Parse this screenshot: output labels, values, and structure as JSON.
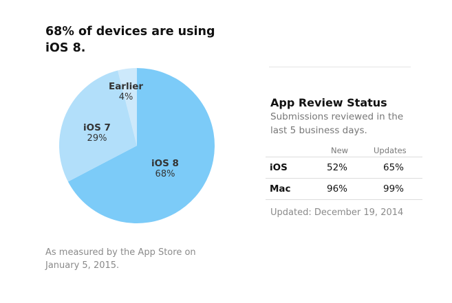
{
  "title": "68% of devices are using iOS 8.",
  "footnote": "As measured by the App Store on January 5, 2015.",
  "chart_data": {
    "type": "pie",
    "title": "68% of devices are using iOS 8.",
    "slices": [
      {
        "label": "iOS 8",
        "value": 68,
        "display": "68%",
        "color": "#7ccbf8"
      },
      {
        "label": "iOS 7",
        "value": 29,
        "display": "29%",
        "color": "#b2dffa"
      },
      {
        "label": "Earlier",
        "value": 4,
        "display": "4%",
        "color": "#cde9fb"
      }
    ]
  },
  "review": {
    "title": "App Review Status",
    "subtitle": "Submissions reviewed in the last 5 business days.",
    "columns": [
      "New",
      "Updates"
    ],
    "rows": [
      {
        "label": "iOS",
        "new": "52%",
        "updates": "65%"
      },
      {
        "label": "Mac",
        "new": "96%",
        "updates": "99%"
      }
    ],
    "updated": "Updated: December 19, 2014"
  }
}
